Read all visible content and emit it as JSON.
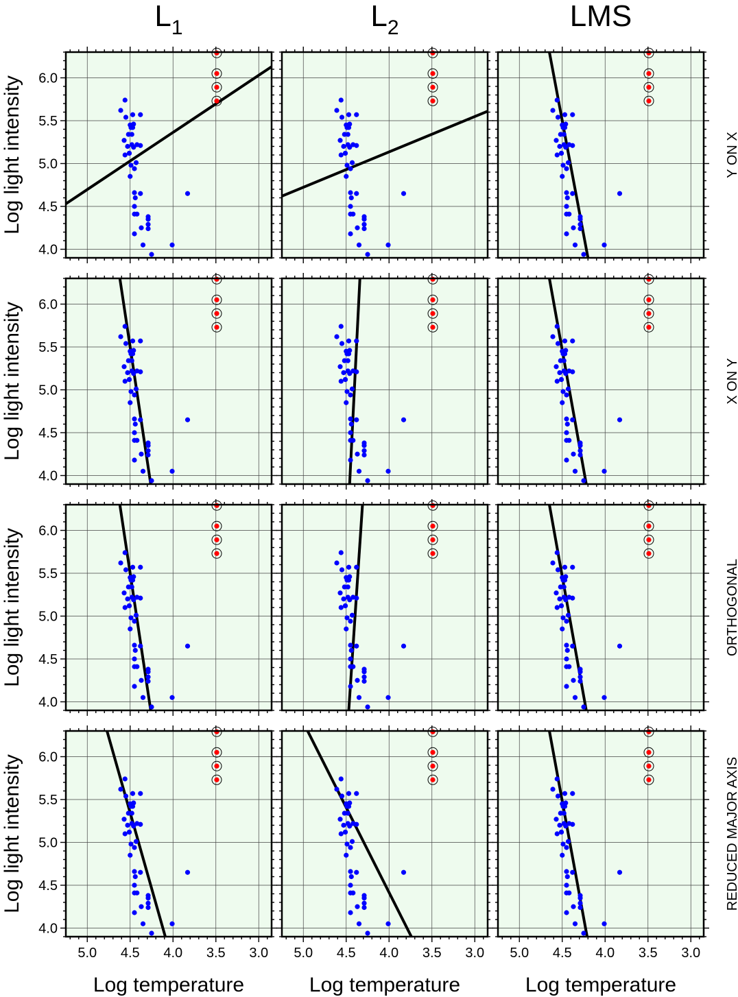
{
  "figure": {
    "column_titles": [
      {
        "base": "L",
        "sub": "1"
      },
      {
        "base": "L",
        "sub": "2"
      },
      {
        "base": "LMS",
        "sub": ""
      }
    ],
    "row_labels": [
      "Y ON X",
      "X ON Y",
      "ORTHOGONAL",
      "REDUCED MAJOR AXIS"
    ],
    "xlabel": "Log temperature",
    "ylabel": "Log light intensity",
    "xticks": [
      "5.0",
      "4.5",
      "4.0",
      "3.5",
      "3.0"
    ],
    "yticks": [
      "4.0",
      "4.5",
      "5.0",
      "5.5",
      "6.0"
    ]
  },
  "colors": {
    "panel_background": "#eefbee",
    "grid": "#444444",
    "point": "#0000ff",
    "outlier": "#ff0000",
    "outlier_ring": "#000000",
    "fit_line": "#000000"
  },
  "chart_data": {
    "type": "scatter",
    "layout": "4 rows x 3 columns of panels sharing axes",
    "xlim": [
      5.25,
      2.85
    ],
    "x_reversed": true,
    "ylim": [
      3.9,
      6.3
    ],
    "grid": true,
    "points": [
      [
        4.61,
        5.62
      ],
      [
        4.56,
        5.74
      ],
      [
        4.55,
        5.54
      ],
      [
        4.57,
        5.27
      ],
      [
        4.56,
        5.1
      ],
      [
        4.53,
        5.2
      ],
      [
        4.52,
        5.34
      ],
      [
        4.5,
        5.45
      ],
      [
        4.49,
        5.42
      ],
      [
        4.47,
        5.42
      ],
      [
        4.46,
        5.46
      ],
      [
        4.48,
        5.34
      ],
      [
        4.47,
        5.57
      ],
      [
        4.48,
        5.22
      ],
      [
        4.49,
        4.98
      ],
      [
        4.5,
        4.85
      ],
      [
        4.51,
        5.12
      ],
      [
        4.51,
        5.12
      ],
      [
        4.46,
        5.19
      ],
      [
        4.45,
        4.94
      ],
      [
        4.43,
        5.01
      ],
      [
        4.42,
        5.22
      ],
      [
        4.38,
        5.21
      ],
      [
        4.38,
        5.57
      ],
      [
        4.45,
        4.66
      ],
      [
        4.44,
        4.6
      ],
      [
        4.45,
        4.5
      ],
      [
        4.45,
        4.41
      ],
      [
        4.42,
        4.41
      ],
      [
        4.45,
        4.18
      ],
      [
        4.38,
        4.65
      ],
      [
        4.37,
        4.25
      ],
      [
        4.35,
        4.05
      ],
      [
        4.29,
        4.29
      ],
      [
        4.29,
        4.38
      ],
      [
        4.29,
        4.35
      ],
      [
        4.29,
        4.24
      ],
      [
        4.25,
        3.94
      ],
      [
        4.01,
        4.05
      ],
      [
        3.83,
        4.65
      ]
    ],
    "outliers": [
      [
        3.49,
        6.29
      ],
      [
        3.49,
        6.05
      ],
      [
        3.49,
        5.89
      ],
      [
        3.49,
        5.73
      ]
    ],
    "fit_lines": [
      [
        [
          5.25,
          4.53
        ],
        [
          2.85,
          6.13
        ]
      ],
      [
        [
          5.25,
          4.62
        ],
        [
          2.85,
          5.61
        ]
      ],
      [
        [
          4.65,
          6.3
        ],
        [
          4.2,
          3.9
        ]
      ],
      [
        [
          4.62,
          6.3
        ],
        [
          4.26,
          3.9
        ]
      ],
      [
        [
          4.34,
          6.3
        ],
        [
          4.46,
          3.9
        ]
      ],
      [
        [
          4.65,
          6.3
        ],
        [
          4.22,
          3.9
        ]
      ],
      [
        [
          4.62,
          6.3
        ],
        [
          4.26,
          3.9
        ]
      ],
      [
        [
          4.31,
          6.3
        ],
        [
          4.47,
          3.9
        ]
      ],
      [
        [
          4.65,
          6.3
        ],
        [
          4.22,
          3.9
        ]
      ],
      [
        [
          4.77,
          6.3
        ],
        [
          4.09,
          3.9
        ]
      ],
      [
        [
          4.95,
          6.3
        ],
        [
          3.74,
          3.9
        ]
      ],
      [
        [
          4.65,
          6.3
        ],
        [
          4.21,
          3.9
        ]
      ]
    ]
  }
}
